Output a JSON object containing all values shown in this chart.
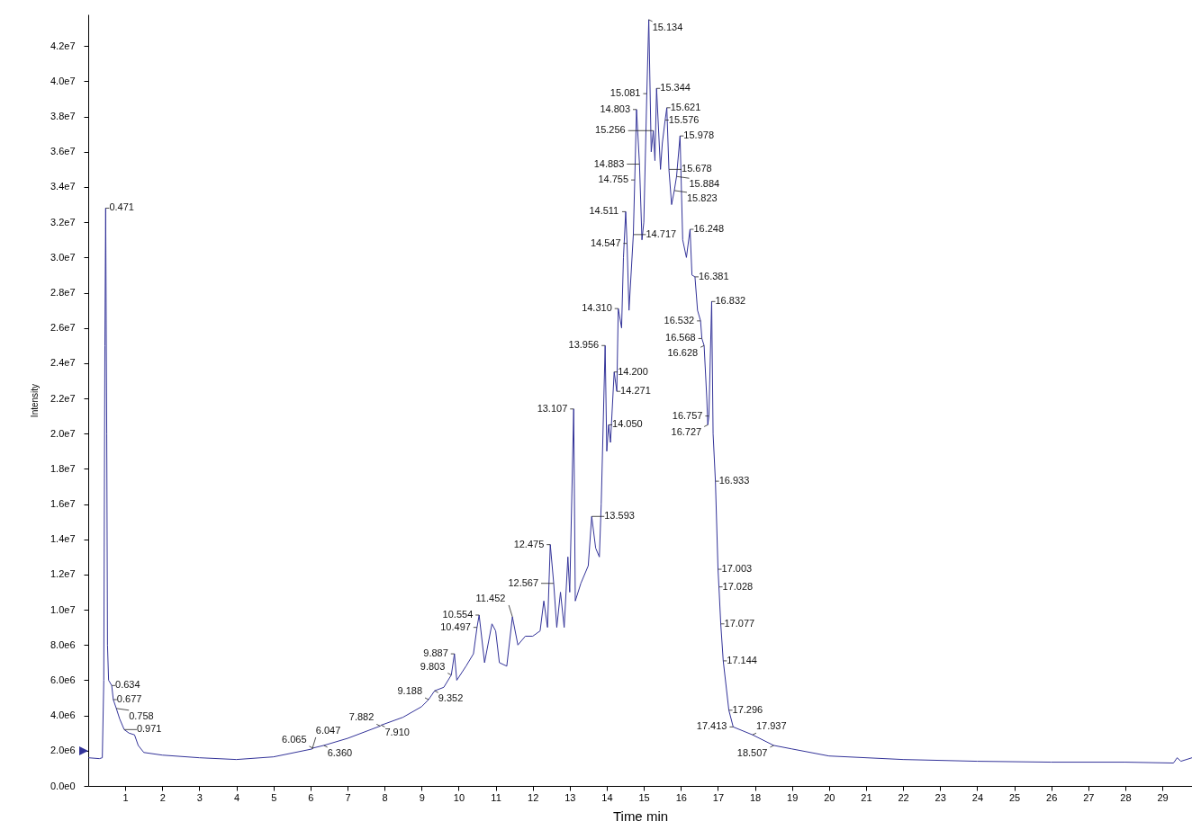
{
  "chart_data": {
    "type": "line",
    "xlabel": "Time min",
    "ylabel": "Intensity",
    "xlim": [
      0,
      29.8
    ],
    "ylim": [
      0,
      43800000.0
    ],
    "xticks": [
      1,
      2,
      3,
      4,
      5,
      6,
      7,
      8,
      9,
      10,
      11,
      12,
      13,
      14,
      15,
      16,
      17,
      18,
      19,
      20,
      21,
      22,
      23,
      24,
      25,
      26,
      27,
      28,
      29
    ],
    "yticks": [
      {
        "value": 0,
        "label": "0.0e0"
      },
      {
        "value": 2000000.0,
        "label": "2.0e6"
      },
      {
        "value": 4000000.0,
        "label": "4.0e6"
      },
      {
        "value": 6000000.0,
        "label": "6.0e6"
      },
      {
        "value": 8000000.0,
        "label": "8.0e6"
      },
      {
        "value": 10000000.0,
        "label": "1.0e7"
      },
      {
        "value": 12000000.0,
        "label": "1.2e7"
      },
      {
        "value": 14000000.0,
        "label": "1.4e7"
      },
      {
        "value": 16000000.0,
        "label": "1.6e7"
      },
      {
        "value": 18000000.0,
        "label": "1.8e7"
      },
      {
        "value": 20000000.0,
        "label": "2.0e7"
      },
      {
        "value": 22000000.0,
        "label": "2.2e7"
      },
      {
        "value": 24000000.0,
        "label": "2.4e7"
      },
      {
        "value": 26000000.0,
        "label": "2.6e7"
      },
      {
        "value": 28000000.0,
        "label": "2.8e7"
      },
      {
        "value": 30000000.0,
        "label": "3.0e7"
      },
      {
        "value": 32000000.0,
        "label": "3.2e7"
      },
      {
        "value": 34000000.0,
        "label": "3.4e7"
      },
      {
        "value": 36000000.0,
        "label": "3.6e7"
      },
      {
        "value": 38000000.0,
        "label": "3.8e7"
      },
      {
        "value": 40000000.0,
        "label": "4.0e7"
      },
      {
        "value": 42000000.0,
        "label": "4.2e7"
      }
    ],
    "x": [
      0,
      0.3,
      0.38,
      0.42,
      0.45,
      0.471,
      0.5,
      0.52,
      0.55,
      0.634,
      0.677,
      0.758,
      0.85,
      0.971,
      1.1,
      1.25,
      1.35,
      1.5,
      2,
      3,
      4,
      5,
      6.047,
      6.065,
      6.36,
      7,
      7.882,
      7.91,
      8.5,
      9,
      9.188,
      9.352,
      9.6,
      9.803,
      9.887,
      9.95,
      10.2,
      10.4,
      10.497,
      10.554,
      10.7,
      10.9,
      11,
      11.1,
      11.3,
      11.452,
      11.6,
      11.8,
      12,
      12.2,
      12.3,
      12.4,
      12.475,
      12.567,
      12.65,
      12.75,
      12.85,
      12.95,
      13,
      13.107,
      13.15,
      13.3,
      13.5,
      13.593,
      13.7,
      13.8,
      13.85,
      13.956,
      14,
      14.05,
      14.1,
      14.2,
      14.271,
      14.31,
      14.4,
      14.45,
      14.511,
      14.547,
      14.6,
      14.717,
      14.755,
      14.803,
      14.883,
      14.95,
      15,
      15.081,
      15.134,
      15.2,
      15.256,
      15.3,
      15.344,
      15.45,
      15.5,
      15.576,
      15.621,
      15.678,
      15.75,
      15.823,
      15.884,
      15.978,
      16.05,
      16.15,
      16.248,
      16.3,
      16.381,
      16.45,
      16.532,
      16.568,
      16.628,
      16.7,
      16.727,
      16.757,
      16.832,
      16.87,
      16.933,
      17.003,
      17.028,
      17.077,
      17.144,
      17.296,
      17.413,
      17.937,
      18.507,
      19,
      20,
      22,
      24,
      26,
      28,
      29.3,
      29.4,
      29.5,
      29.8
    ],
    "series": [
      {
        "color": "#333399",
        "values": [
          1600000.0,
          1550000.0,
          1600000.0,
          6000000.0,
          25000000.0,
          32800000.0,
          20000000.0,
          8000000.0,
          6000000.0,
          5700000.0,
          4900000.0,
          4400000.0,
          3800000.0,
          3200000.0,
          3000000.0,
          2900000.0,
          2300000.0,
          1900000.0,
          1750000.0,
          1600000.0,
          1500000.0,
          1650000.0,
          2100000.0,
          2150000.0,
          2300000.0,
          2700000.0,
          3400000.0,
          3450000.0,
          3900000.0,
          4500000.0,
          4900000.0,
          5400000.0,
          5600000.0,
          6300000.0,
          7500000.0,
          6000000.0,
          6800000.0,
          7500000.0,
          9000000.0,
          9700000.0,
          7000000.0,
          9200000.0,
          8800000.0,
          7000000.0,
          6800000.0,
          9600000.0,
          8000000.0,
          8500000.0,
          8500000.0,
          8800000.0,
          10500000.0,
          9000000.0,
          13700000.0,
          11500000.0,
          9000000.0,
          11000000.0,
          9000000.0,
          13000000.0,
          11000000.0,
          21400000.0,
          10500000.0,
          11500000.0,
          12500000.0,
          15300000.0,
          13500000.0,
          13000000.0,
          16000000.0,
          25000000.0,
          19000000.0,
          20500000.0,
          19500000.0,
          23500000.0,
          22400000.0,
          27100000.0,
          26000000.0,
          30000000.0,
          32600000.0,
          30800000.0,
          27000000.0,
          31300000.0,
          34400000.0,
          38400000.0,
          35300000.0,
          31000000.0,
          32000000.0,
          39300000.0,
          43500000.0,
          36000000.0,
          37200000.0,
          35500000.0,
          39600000.0,
          35000000.0,
          36500000.0,
          37800000.0,
          38500000.0,
          35000000.0,
          33000000.0,
          33800000.0,
          34600000.0,
          36900000.0,
          31000000.0,
          30000000.0,
          31600000.0,
          29000000.0,
          28900000.0,
          27000000.0,
          26400000.0,
          25400000.0,
          25000000.0,
          22000000.0,
          20500000.0,
          21000000.0,
          27500000.0,
          20000000.0,
          17300000.0,
          12300000.0,
          11300000.0,
          9200000.0,
          7100000.0,
          4300000.0,
          3350000.0,
          2900000.0,
          2300000.0,
          2100000.0,
          1700000.0,
          1500000.0,
          1400000.0,
          1350000.0,
          1350000.0,
          1300000.0,
          1600000.0,
          1400000.0,
          1600000.0
        ]
      }
    ],
    "annotations": [
      {
        "text": "0.471",
        "x": 0.471,
        "y": 32800000.0
      },
      {
        "text": "0.634",
        "x": 0.634,
        "y": 5700000.0
      },
      {
        "text": "0.758",
        "x": 0.758,
        "y": 4400000.0
      },
      {
        "text": "0.677",
        "x": 0.677,
        "y": 4900000.0
      },
      {
        "text": "0.971",
        "x": 0.971,
        "y": 3200000.0
      },
      {
        "text": "6.047",
        "x": 6.047,
        "y": 2100000.0
      },
      {
        "text": "6.065",
        "x": 6.065,
        "y": 2150000.0
      },
      {
        "text": "6.360",
        "x": 6.36,
        "y": 2300000.0
      },
      {
        "text": "7.910",
        "x": 7.91,
        "y": 3450000.0
      },
      {
        "text": "7.882",
        "x": 7.882,
        "y": 3400000.0
      },
      {
        "text": "9.188",
        "x": 9.188,
        "y": 4900000.0
      },
      {
        "text": "9.352",
        "x": 9.352,
        "y": 5400000.0
      },
      {
        "text": "9.803",
        "x": 9.803,
        "y": 6300000.0
      },
      {
        "text": "9.887",
        "x": 9.887,
        "y": 7500000.0
      },
      {
        "text": "10.497",
        "x": 10.497,
        "y": 9000000.0
      },
      {
        "text": "10.554",
        "x": 10.554,
        "y": 9700000.0
      },
      {
        "text": "11.452",
        "x": 11.452,
        "y": 9600000.0
      },
      {
        "text": "12.567",
        "x": 12.567,
        "y": 11500000.0
      },
      {
        "text": "12.475",
        "x": 12.475,
        "y": 13700000.0
      },
      {
        "text": "13.593",
        "x": 13.593,
        "y": 15300000.0
      },
      {
        "text": "13.107",
        "x": 13.107,
        "y": 21400000.0
      },
      {
        "text": "14.050",
        "x": 14.05,
        "y": 20500000.0
      },
      {
        "text": "14.271",
        "x": 14.271,
        "y": 22400000.0
      },
      {
        "text": "14.200",
        "x": 14.2,
        "y": 23500000.0
      },
      {
        "text": "13.956",
        "x": 13.956,
        "y": 25000000.0
      },
      {
        "text": "14.310",
        "x": 14.31,
        "y": 27100000.0
      },
      {
        "text": "14.547",
        "x": 14.547,
        "y": 30800000.0
      },
      {
        "text": "14.717",
        "x": 14.717,
        "y": 31300000.0
      },
      {
        "text": "14.511",
        "x": 14.511,
        "y": 32600000.0
      },
      {
        "text": "14.755",
        "x": 14.755,
        "y": 34400000.0
      },
      {
        "text": "14.883",
        "x": 14.883,
        "y": 35300000.0
      },
      {
        "text": "15.256",
        "x": 15.256,
        "y": 37200000.0
      },
      {
        "text": "14.803",
        "x": 14.803,
        "y": 38400000.0
      },
      {
        "text": "15.081",
        "x": 15.081,
        "y": 39300000.0
      },
      {
        "text": "15.134",
        "x": 15.134,
        "y": 43500000.0
      },
      {
        "text": "15.344",
        "x": 15.344,
        "y": 39600000.0
      },
      {
        "text": "15.621",
        "x": 15.621,
        "y": 38500000.0
      },
      {
        "text": "15.576",
        "x": 15.576,
        "y": 37800000.0
      },
      {
        "text": "15.978",
        "x": 15.978,
        "y": 36900000.0
      },
      {
        "text": "15.678",
        "x": 15.678,
        "y": 35000000.0
      },
      {
        "text": "15.884",
        "x": 15.884,
        "y": 34600000.0
      },
      {
        "text": "15.823",
        "x": 15.823,
        "y": 33800000.0
      },
      {
        "text": "16.248",
        "x": 16.248,
        "y": 31600000.0
      },
      {
        "text": "16.381",
        "x": 16.381,
        "y": 28900000.0
      },
      {
        "text": "16.832",
        "x": 16.832,
        "y": 27500000.0
      },
      {
        "text": "16.532",
        "x": 16.532,
        "y": 26400000.0
      },
      {
        "text": "16.628",
        "x": 16.628,
        "y": 25000000.0
      },
      {
        "text": "16.568",
        "x": 16.568,
        "y": 25400000.0
      },
      {
        "text": "16.757",
        "x": 16.757,
        "y": 21000000.0
      },
      {
        "text": "16.727",
        "x": 16.727,
        "y": 20500000.0
      },
      {
        "text": "16.933",
        "x": 16.933,
        "y": 17300000.0
      },
      {
        "text": "17.003",
        "x": 17.003,
        "y": 12300000.0
      },
      {
        "text": "17.028",
        "x": 17.028,
        "y": 11300000.0
      },
      {
        "text": "17.077",
        "x": 17.077,
        "y": 9200000.0
      },
      {
        "text": "17.144",
        "x": 17.144,
        "y": 7100000.0
      },
      {
        "text": "17.296",
        "x": 17.296,
        "y": 4300000.0
      },
      {
        "text": "17.413",
        "x": 17.413,
        "y": 3350000.0
      },
      {
        "text": "17.937",
        "x": 17.937,
        "y": 2900000.0
      },
      {
        "text": "18.507",
        "x": 18.507,
        "y": 2300000.0
      }
    ]
  }
}
